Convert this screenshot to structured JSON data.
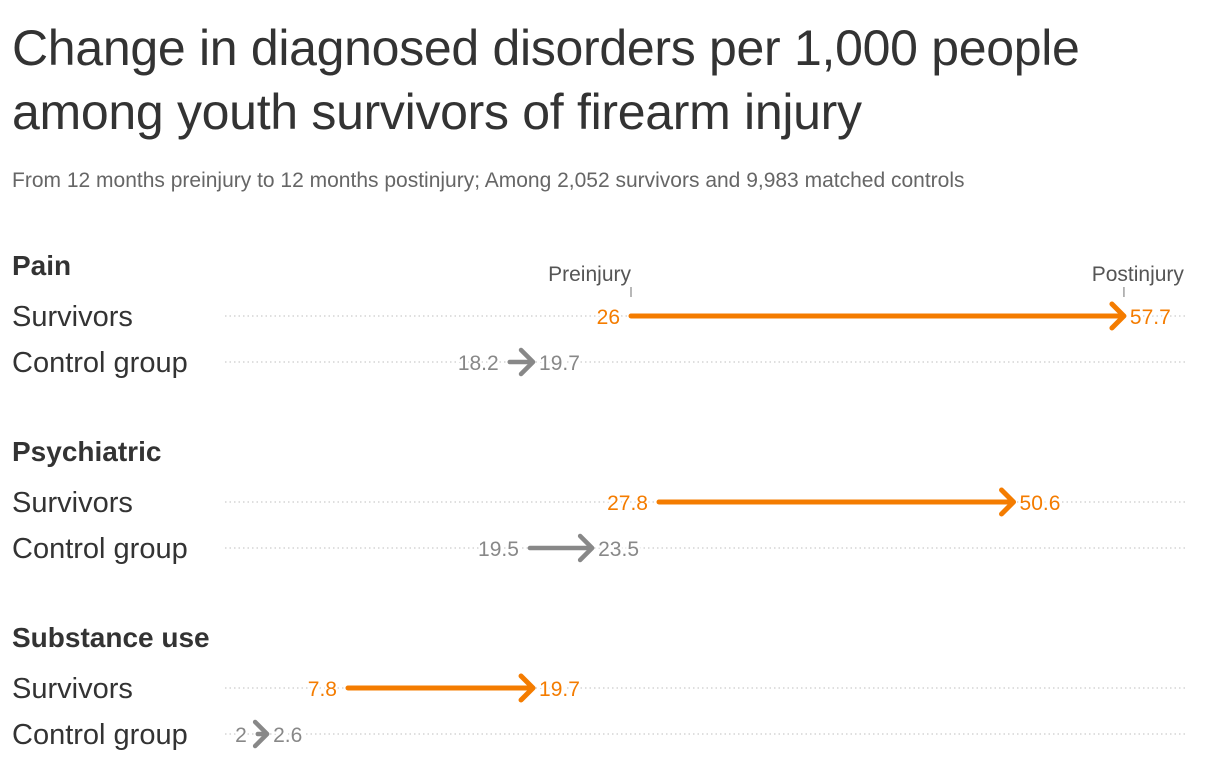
{
  "title": "Change in diagnosed disorders per 1,000 people among youth survivors of firearm injury",
  "subtitle": "From 12 months preinjury to 12 months postinjury; Among 2,052 survivors and 9,983 matched controls",
  "colors": {
    "survivors": "#f47c00",
    "control": "#888888",
    "text": "#333333",
    "gridline": "#cccccc"
  },
  "chart_data": {
    "type": "arrow-dot-plot",
    "legend": {
      "start_label": "Preinjury",
      "end_label": "Postinjury",
      "placement": "top"
    },
    "xlim": [
      0,
      60
    ],
    "groups": [
      {
        "name": "Pain",
        "rows": [
          {
            "label": "Survivors",
            "series": "survivors",
            "pre": 26,
            "post": 57.7,
            "pre_label": "26",
            "post_label": "57.7"
          },
          {
            "label": "Control group",
            "series": "control",
            "pre": 18.2,
            "post": 19.7,
            "pre_label": "18.2",
            "post_label": "19.7"
          }
        ]
      },
      {
        "name": "Psychiatric",
        "rows": [
          {
            "label": "Survivors",
            "series": "survivors",
            "pre": 27.8,
            "post": 50.6,
            "pre_label": "27.8",
            "post_label": "50.6"
          },
          {
            "label": "Control group",
            "series": "control",
            "pre": 19.5,
            "post": 23.5,
            "pre_label": "19.5",
            "post_label": "23.5"
          }
        ]
      },
      {
        "name": "Substance use",
        "rows": [
          {
            "label": "Survivors",
            "series": "survivors",
            "pre": 7.8,
            "post": 19.7,
            "pre_label": "7.8",
            "post_label": "19.7"
          },
          {
            "label": "Control group",
            "series": "control",
            "pre": 2,
            "post": 2.6,
            "pre_label": "2",
            "post_label": "2.6"
          }
        ]
      }
    ]
  }
}
